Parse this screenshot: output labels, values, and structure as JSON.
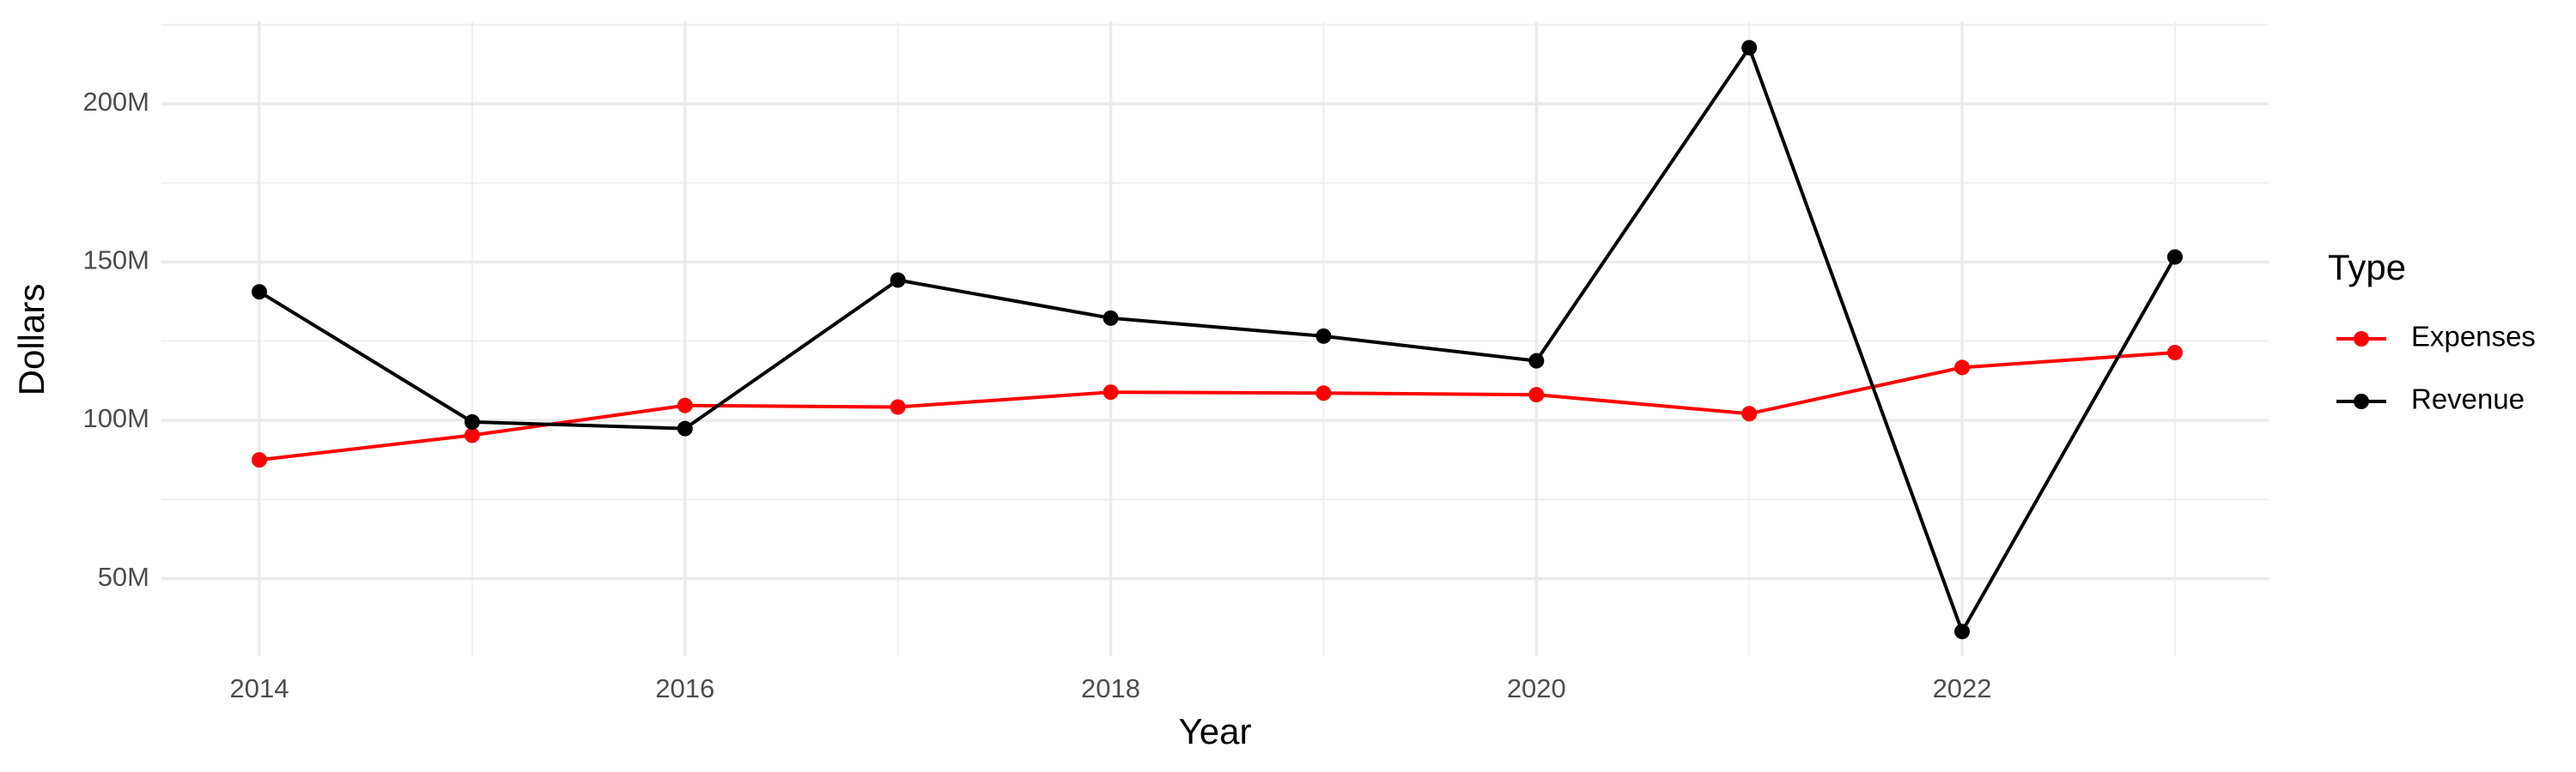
{
  "chart_data": {
    "type": "line",
    "x_label": "Year",
    "y_label": "Dollars",
    "legend_title": "Type",
    "legend": "right",
    "grid": true,
    "x": [
      2014,
      2015,
      2016,
      2017,
      2018,
      2019,
      2020,
      2021,
      2022,
      2023
    ],
    "series": [
      {
        "name": "Expenses",
        "color": "#ff0000",
        "values": [
          87500000,
          95300000,
          104700000,
          104200000,
          108900000,
          108600000,
          108100000,
          102100000,
          116700000,
          121400000
        ]
      },
      {
        "name": "Revenue",
        "color": "#000000",
        "values": [
          140600000,
          99500000,
          97400000,
          144300000,
          132300000,
          126600000,
          118800000,
          217700000,
          33300000,
          151600000
        ]
      }
    ],
    "xlim": [
      2013.54,
      2023.44
    ],
    "xticks": [
      2014,
      2016,
      2018,
      2020,
      2022
    ],
    "ylim": [
      25500000,
      226000000
    ],
    "yticks": [
      {
        "value": 50000000,
        "label": "50M"
      },
      {
        "value": 100000000,
        "label": "100M"
      },
      {
        "value": 150000000,
        "label": "150M"
      },
      {
        "value": 200000000,
        "label": "200M"
      }
    ]
  }
}
